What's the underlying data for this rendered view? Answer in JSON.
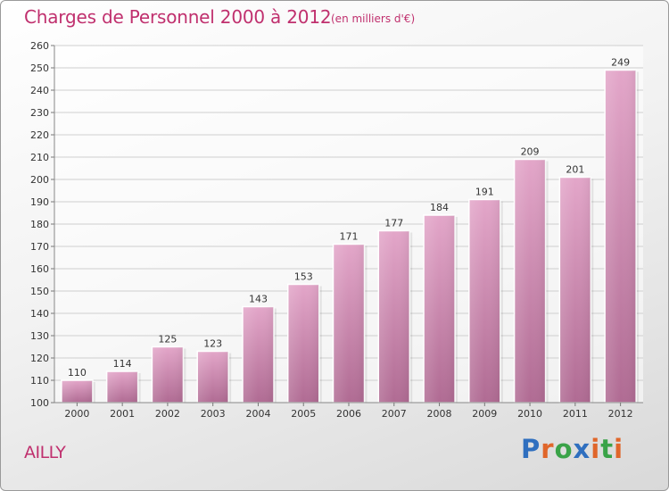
{
  "header": {
    "title": "Charges de Personnel 2000 à 2012",
    "unit_note": "(en milliers d'€)"
  },
  "footer": {
    "town": "AILLY",
    "logo_text": "Proxiti"
  },
  "colors": {
    "title": "#c0306e",
    "bar_top": "#e3a6c9",
    "bar_bottom": "#b06b93",
    "logo_letters": [
      "#2f6fbf",
      "#e0662a",
      "#3aa348",
      "#2f6fbf",
      "#e0662a",
      "#3aa348",
      "#e0662a"
    ]
  },
  "chart_data": {
    "type": "bar",
    "title": "Charges de Personnel 2000 à 2012",
    "subtitle": "(en milliers d'€)",
    "xlabel": "",
    "ylabel": "",
    "categories": [
      "2000",
      "2001",
      "2002",
      "2003",
      "2004",
      "2005",
      "2006",
      "2007",
      "2008",
      "2009",
      "2010",
      "2011",
      "2012"
    ],
    "values": [
      110,
      114,
      125,
      123,
      143,
      153,
      171,
      177,
      184,
      191,
      209,
      201,
      249
    ],
    "ylim": [
      100,
      260
    ],
    "yticks": [
      100,
      110,
      120,
      130,
      140,
      150,
      160,
      170,
      180,
      190,
      200,
      210,
      220,
      230,
      240,
      250,
      260
    ],
    "grid": true,
    "data_labels": true
  }
}
